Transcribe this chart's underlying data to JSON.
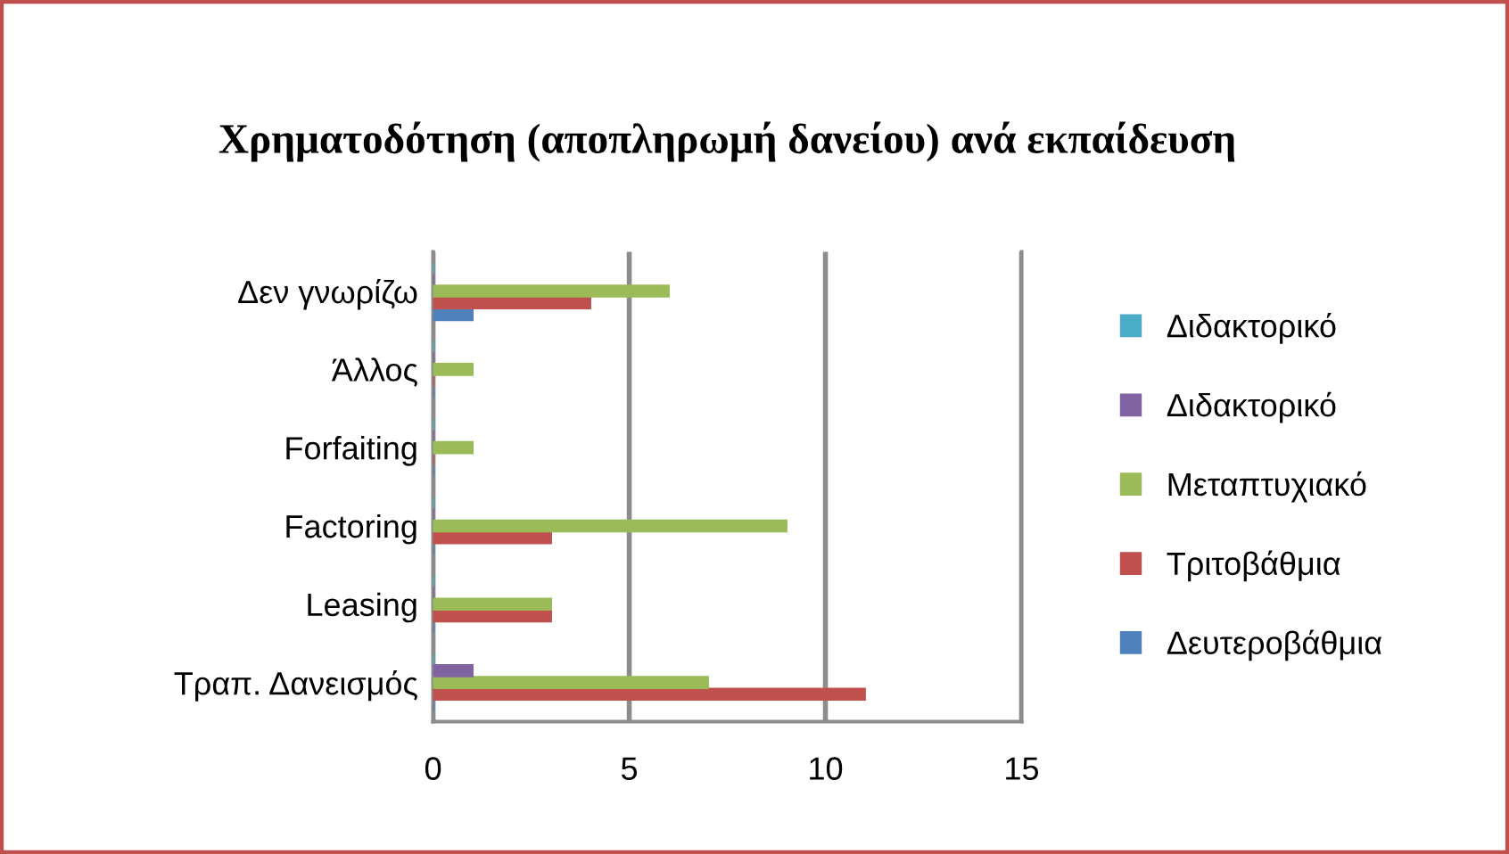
{
  "chart_data": {
    "type": "bar",
    "orientation": "horizontal",
    "title": "Χρηματοδότηση (αποπληρωμή δανείου) ανά εκπαίδευση",
    "categories": [
      "Δεν γνωρίζω",
      "Άλλος",
      "Forfaiting",
      "Factoring",
      "Leasing",
      "Τραπ. Δανεισμός"
    ],
    "series": [
      {
        "name": "Δευτεροβάθμια",
        "color": "#4f81bd",
        "values": [
          1,
          0,
          0,
          0,
          0,
          0
        ]
      },
      {
        "name": "Τριτοβάθμια",
        "color": "#c0504d",
        "values": [
          4,
          0,
          0,
          3,
          3,
          11
        ]
      },
      {
        "name": "Μεταπτυχιακό",
        "color": "#9bbb59",
        "values": [
          6,
          1,
          1,
          9,
          3,
          7
        ]
      },
      {
        "name": "Διδακτορικό",
        "color": "#8064a2",
        "values": [
          0,
          0,
          0,
          0,
          0,
          1
        ]
      },
      {
        "name": "Διδακτορικό",
        "color": "#4bacc6",
        "values": [
          0,
          0,
          0,
          0,
          0,
          0
        ]
      }
    ],
    "xlim": [
      0,
      15
    ],
    "xticks": [
      0,
      5,
      10,
      15
    ],
    "grid": "x",
    "legend": "right"
  }
}
